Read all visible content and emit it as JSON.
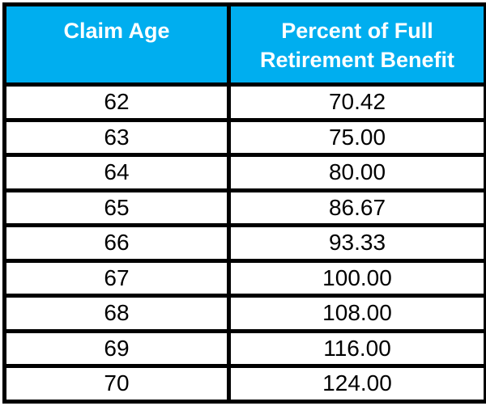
{
  "colors": {
    "header_bg": "#00AEEF",
    "header_text": "#FFFFFF",
    "border": "#000000",
    "cell_bg": "#FFFFFF",
    "cell_text": "#000000"
  },
  "table": {
    "headers": [
      "Claim Age",
      "Percent of Full Retirement Benefit"
    ],
    "rows": [
      [
        "62",
        "70.42"
      ],
      [
        "63",
        "75.00"
      ],
      [
        "64",
        "80.00"
      ],
      [
        "65",
        "86.67"
      ],
      [
        "66",
        "93.33"
      ],
      [
        "67",
        "100.00"
      ],
      [
        "68",
        "108.00"
      ],
      [
        "69",
        "116.00"
      ],
      [
        "70",
        "124.00"
      ]
    ]
  },
  "chart_data": {
    "type": "table",
    "title": "",
    "columns": [
      "Claim Age",
      "Percent of Full Retirement Benefit"
    ],
    "rows": [
      [
        62,
        70.42
      ],
      [
        63,
        75.0
      ],
      [
        64,
        80.0
      ],
      [
        65,
        86.67
      ],
      [
        66,
        93.33
      ],
      [
        67,
        100.0
      ],
      [
        68,
        108.0
      ],
      [
        69,
        116.0
      ],
      [
        70,
        124.0
      ]
    ]
  }
}
